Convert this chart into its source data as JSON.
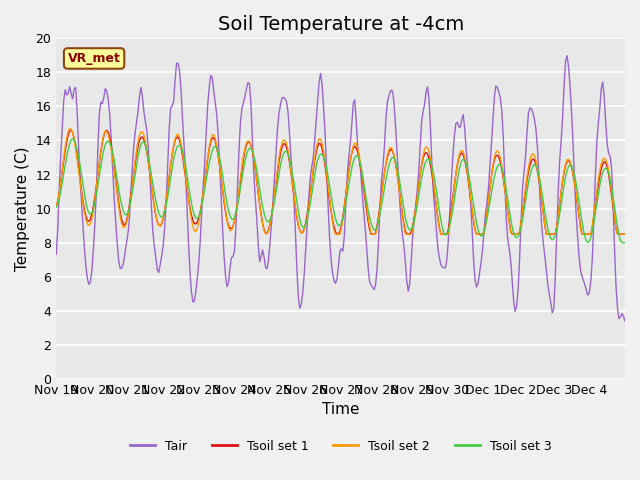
{
  "title": "Soil Temperature at -4cm",
  "xlabel": "Time",
  "ylabel": "Temperature (C)",
  "ylim": [
    0,
    20
  ],
  "annotation": "VR_met",
  "bg_color": "#e8e8e8",
  "grid_color": "#ffffff",
  "line_colors": {
    "Tair": "#9966cc",
    "Tsoil set 1": "#dd1111",
    "Tsoil set 2": "#ff9900",
    "Tsoil set 3": "#44cc44"
  },
  "xtick_labels": [
    "Nov 19",
    "Nov 20",
    "Nov 21",
    "Nov 22",
    "Nov 23",
    "Nov 24",
    "Nov 25",
    "Nov 26",
    "Nov 27",
    "Nov 28",
    "Nov 29",
    "Nov 30",
    "Dec 1",
    "Dec 2",
    "Dec 3",
    "Dec 4"
  ],
  "ytick_labels": [
    "0",
    "2",
    "4",
    "6",
    "8",
    "10",
    "12",
    "14",
    "16",
    "18",
    "20"
  ],
  "legend_loc": "lower center",
  "title_fontsize": 14,
  "axis_fontsize": 11,
  "tick_fontsize": 9
}
